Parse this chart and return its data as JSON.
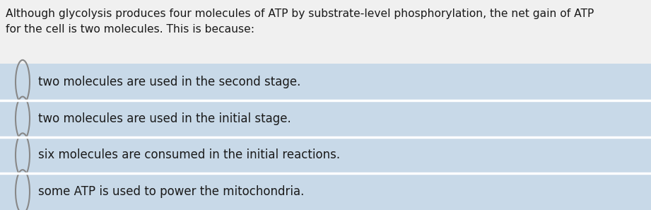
{
  "title_text_line1": "Although glycolysis produces four molecules of ATP by substrate-level phosphorylation, the net gain of ATP",
  "title_text_line2": "for the cell is two molecules. This is because:",
  "title_bg": "#f0f0f0",
  "options_bg": "#c8d9e8",
  "separator_color": "#ffffff",
  "options": [
    "two molecules are used in the second stage.",
    "two molecules are used in the initial stage.",
    "six molecules are consumed in the initial reactions.",
    "some ATP is used to power the mitochondria."
  ],
  "text_color": "#1a1a1a",
  "circle_edge_color": "#888888",
  "title_fontsize": 11.2,
  "option_fontsize": 12.0,
  "fig_width": 9.21,
  "fig_height": 2.97,
  "dpi": 100
}
